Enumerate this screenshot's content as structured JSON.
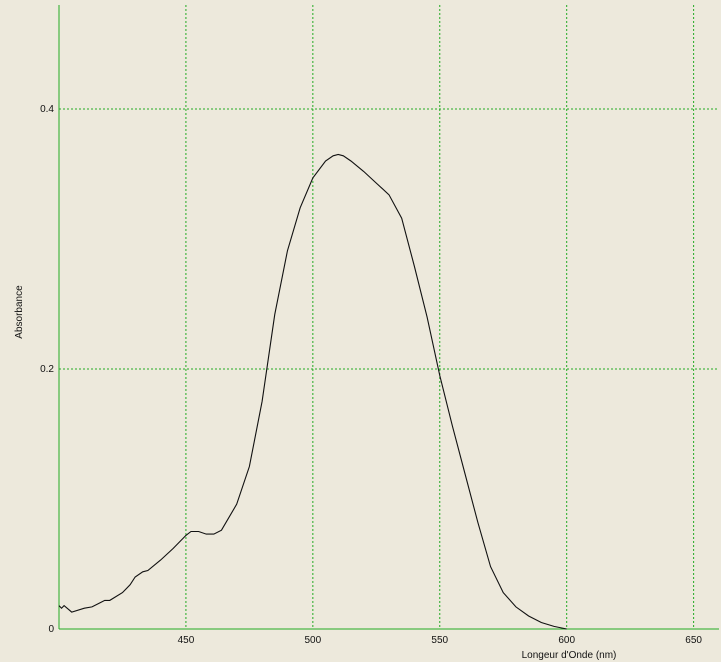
{
  "colors": {
    "background": "#ede9dc",
    "axis": "#22aa22",
    "grid": "#22aa22",
    "curve": "#111111"
  },
  "chart_data": {
    "type": "line",
    "title": "",
    "xlabel": "Longeur d'Onde (nm)",
    "ylabel": "Absorbance",
    "xlim": [
      400,
      660
    ],
    "ylim": [
      0,
      0.48
    ],
    "grid": true,
    "legend": "none",
    "xticks": [
      450,
      500,
      550,
      600,
      650
    ],
    "yticks": [
      0,
      0.2,
      0.4
    ],
    "xtick_labels": [
      "450",
      "500",
      "550",
      "600",
      "650"
    ],
    "ytick_labels": [
      "0",
      "0.2",
      "0.4"
    ],
    "series": [
      {
        "x": [
          400,
          401,
          402,
          405,
          410,
          413,
          416,
          418,
          420,
          425,
          428,
          430,
          433,
          435,
          440,
          445,
          450,
          452,
          455,
          458,
          461,
          464,
          470,
          475,
          480,
          485,
          490,
          495,
          500,
          505,
          508,
          510,
          512,
          515,
          520,
          525,
          530,
          535,
          540,
          545,
          550,
          555,
          560,
          565,
          570,
          575,
          580,
          585,
          590,
          595,
          600
        ],
        "values": [
          0.018,
          0.016,
          0.018,
          0.013,
          0.016,
          0.017,
          0.02,
          0.022,
          0.022,
          0.028,
          0.034,
          0.04,
          0.044,
          0.045,
          0.053,
          0.062,
          0.072,
          0.075,
          0.075,
          0.073,
          0.073,
          0.076,
          0.096,
          0.125,
          0.175,
          0.242,
          0.291,
          0.324,
          0.347,
          0.36,
          0.364,
          0.365,
          0.364,
          0.36,
          0.352,
          0.343,
          0.334,
          0.316,
          0.279,
          0.24,
          0.195,
          0.156,
          0.119,
          0.082,
          0.048,
          0.028,
          0.017,
          0.01,
          0.005,
          0.002,
          0.0
        ]
      }
    ]
  }
}
